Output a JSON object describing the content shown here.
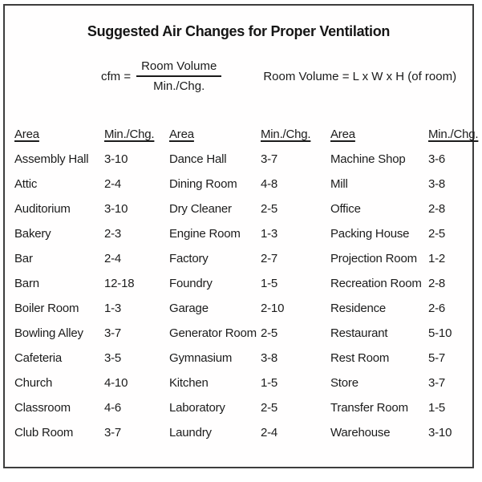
{
  "title": "Suggested Air Changes for Proper Ventilation",
  "formula": {
    "cfm_label": "cfm =",
    "numerator": "Room Volume",
    "denominator": "Min./Chg.",
    "room_volume_formula": "Room Volume = L x W x H (of room)"
  },
  "table": {
    "area_header": "Area",
    "min_chg_header": "Min./Chg.",
    "columns": [
      {
        "rows": [
          {
            "area": "Assembly Hall",
            "min_chg": "3-10"
          },
          {
            "area": "Attic",
            "min_chg": "2-4"
          },
          {
            "area": "Auditorium",
            "min_chg": "3-10"
          },
          {
            "area": "Bakery",
            "min_chg": "2-3"
          },
          {
            "area": "Bar",
            "min_chg": "2-4"
          },
          {
            "area": "Barn",
            "min_chg": "12-18"
          },
          {
            "area": "Boiler Room",
            "min_chg": "1-3"
          },
          {
            "area": "Bowling Alley",
            "min_chg": "3-7"
          },
          {
            "area": "Cafeteria",
            "min_chg": "3-5"
          },
          {
            "area": "Church",
            "min_chg": "4-10"
          },
          {
            "area": "Classroom",
            "min_chg": "4-6"
          },
          {
            "area": "Club Room",
            "min_chg": "3-7"
          }
        ]
      },
      {
        "rows": [
          {
            "area": "Dance Hall",
            "min_chg": "3-7"
          },
          {
            "area": "Dining Room",
            "min_chg": "4-8"
          },
          {
            "area": "Dry Cleaner",
            "min_chg": "2-5"
          },
          {
            "area": "Engine Room",
            "min_chg": "1-3"
          },
          {
            "area": "Factory",
            "min_chg": "2-7"
          },
          {
            "area": "Foundry",
            "min_chg": "1-5"
          },
          {
            "area": "Garage",
            "min_chg": "2-10"
          },
          {
            "area": "Generator Room",
            "min_chg": "2-5"
          },
          {
            "area": "Gymnasium",
            "min_chg": "3-8"
          },
          {
            "area": "Kitchen",
            "min_chg": "1-5"
          },
          {
            "area": "Laboratory",
            "min_chg": "2-5"
          },
          {
            "area": "Laundry",
            "min_chg": "2-4"
          }
        ]
      },
      {
        "rows": [
          {
            "area": "Machine Shop",
            "min_chg": "3-6"
          },
          {
            "area": "Mill",
            "min_chg": "3-8"
          },
          {
            "area": "Office",
            "min_chg": "2-8"
          },
          {
            "area": "Packing House",
            "min_chg": "2-5"
          },
          {
            "area": "Projection Room",
            "min_chg": "1-2"
          },
          {
            "area": "Recreation Room",
            "min_chg": "2-8"
          },
          {
            "area": "Residence",
            "min_chg": "2-6"
          },
          {
            "area": "Restaurant",
            "min_chg": "5-10"
          },
          {
            "area": "Rest Room",
            "min_chg": "5-7"
          },
          {
            "area": "Store",
            "min_chg": "3-7"
          },
          {
            "area": "Transfer Room",
            "min_chg": "1-5"
          },
          {
            "area": "Warehouse",
            "min_chg": "3-10"
          }
        ]
      }
    ]
  }
}
